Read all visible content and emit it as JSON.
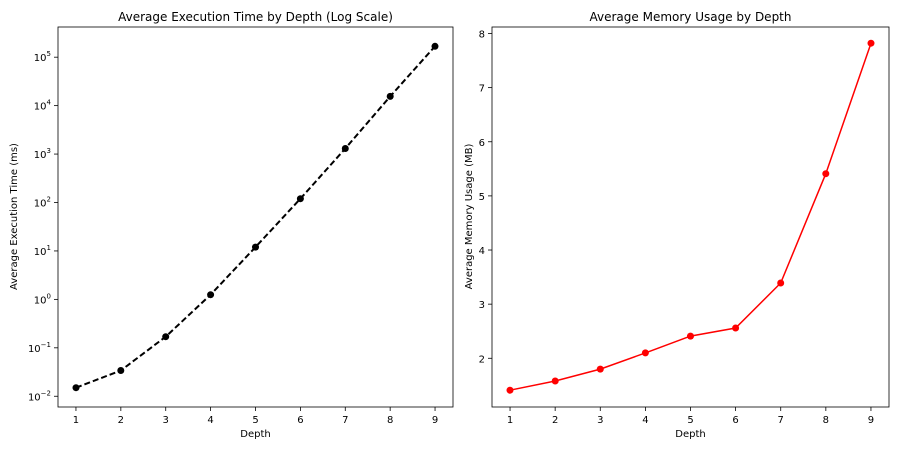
{
  "chart_data": [
    {
      "type": "line",
      "title": "Average Execution Time by Depth (Log Scale)",
      "xlabel": "Depth",
      "ylabel": "Average Execution Time (ms)",
      "yscale": "log",
      "x": [
        1,
        2,
        3,
        4,
        5,
        6,
        7,
        8,
        9
      ],
      "xticks": [
        "1",
        "2",
        "3",
        "4",
        "5",
        "6",
        "7",
        "8",
        "9"
      ],
      "yticks": [
        {
          "value": 0.01,
          "base": "10",
          "exp": "−2"
        },
        {
          "value": 0.1,
          "base": "10",
          "exp": "−1"
        },
        {
          "value": 1,
          "base": "10",
          "exp": "0"
        },
        {
          "value": 10,
          "base": "10",
          "exp": "1"
        },
        {
          "value": 100,
          "base": "10",
          "exp": "2"
        },
        {
          "value": 1000,
          "base": "10",
          "exp": "3"
        },
        {
          "value": 10000,
          "base": "10",
          "exp": "4"
        },
        {
          "value": 100000,
          "base": "10",
          "exp": "5"
        }
      ],
      "xlim": [
        0.6,
        9.4
      ],
      "ylim": [
        0.006,
        420000
      ],
      "series": [
        {
          "values": [
            0.015,
            0.034,
            0.17,
            1.25,
            12,
            120,
            1300,
            15500,
            168000
          ],
          "color": "#000000",
          "linestyle": "dashed",
          "marker": "circle"
        }
      ],
      "grid": false
    },
    {
      "type": "line",
      "title": "Average Memory Usage by Depth",
      "xlabel": "Depth",
      "ylabel": "Average Memory Usage (MB)",
      "x": [
        1,
        2,
        3,
        4,
        5,
        6,
        7,
        8,
        9
      ],
      "xticks": [
        "1",
        "2",
        "3",
        "4",
        "5",
        "6",
        "7",
        "8",
        "9"
      ],
      "yticks": [
        {
          "value": 2,
          "label": "2"
        },
        {
          "value": 3,
          "label": "3"
        },
        {
          "value": 4,
          "label": "4"
        },
        {
          "value": 5,
          "label": "5"
        },
        {
          "value": 6,
          "label": "6"
        },
        {
          "value": 7,
          "label": "7"
        },
        {
          "value": 8,
          "label": "8"
        }
      ],
      "xlim": [
        0.6,
        9.4
      ],
      "ylim": [
        1.1,
        8.12
      ],
      "series": [
        {
          "values": [
            1.41,
            1.58,
            1.8,
            2.1,
            2.41,
            2.56,
            3.39,
            5.41,
            7.82
          ],
          "color": "#ff0000",
          "linestyle": "solid",
          "marker": "circle"
        }
      ],
      "grid": false
    }
  ]
}
